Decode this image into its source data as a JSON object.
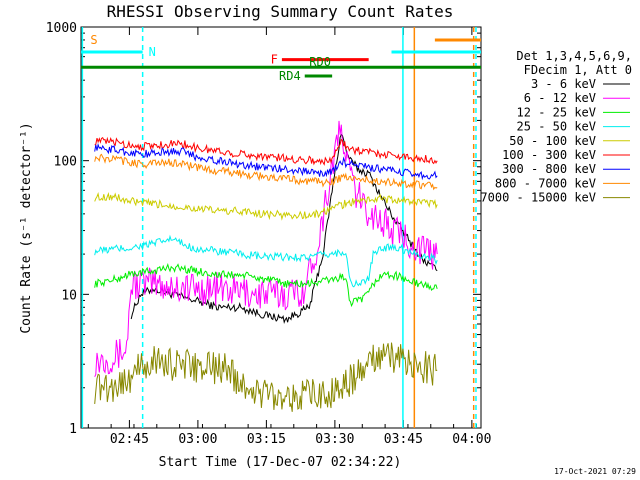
{
  "chart_data": {
    "type": "line",
    "title": "RHESSI Observing Summary Count Rates",
    "xlabel": "Start Time (17-Dec-07 02:34:22)",
    "ylabel": "Count Rate (s⁻¹ detector⁻¹)",
    "footer": "17-Oct-2021 07:29",
    "yscale": "log",
    "ylim": [
      1,
      1000
    ],
    "xlim_minutes": [
      0,
      87.6
    ],
    "x_unit": "minutes after 02:34:22",
    "y_tick_labels": [
      "1",
      "10",
      "100",
      "1000"
    ],
    "x_ticks": [
      {
        "label": "02:45",
        "t": 10.6
      },
      {
        "label": "03:00",
        "t": 25.6
      },
      {
        "label": "03:15",
        "t": 40.6
      },
      {
        "label": "03:30",
        "t": 55.6
      },
      {
        "label": "03:45",
        "t": 70.6
      },
      {
        "label": "04:00",
        "t": 85.6
      }
    ],
    "legend_header": [
      "Det 1,3,4,5,6,9,",
      "FDecim 1, Att 0"
    ],
    "series": [
      {
        "name": "3 - 6 keV",
        "color": "#000000",
        "points": [
          [
            11,
            7
          ],
          [
            13,
            10
          ],
          [
            16,
            11
          ],
          [
            20,
            10
          ],
          [
            25,
            9
          ],
          [
            30,
            8
          ],
          [
            35,
            8
          ],
          [
            40,
            7
          ],
          [
            45,
            6.5
          ],
          [
            50,
            8
          ],
          [
            53,
            20
          ],
          [
            55,
            60
          ],
          [
            57,
            165
          ],
          [
            58,
            120
          ],
          [
            59,
            100
          ],
          [
            61,
            85
          ],
          [
            63,
            80
          ],
          [
            65,
            60
          ],
          [
            67,
            45
          ],
          [
            69,
            35
          ],
          [
            71,
            28
          ],
          [
            73,
            22
          ],
          [
            75,
            18
          ],
          [
            77,
            16
          ],
          [
            78,
            15
          ]
        ]
      },
      {
        "name": "6 - 12 keV",
        "color": "#ff00ff",
        "points": [
          [
            3,
            3.2
          ],
          [
            8,
            3.5
          ],
          [
            10,
            4
          ],
          [
            11,
            12
          ],
          [
            16,
            12
          ],
          [
            20,
            11.5
          ],
          [
            25,
            11
          ],
          [
            30,
            11
          ],
          [
            35,
            10.5
          ],
          [
            40,
            10
          ],
          [
            45,
            10
          ],
          [
            49,
            11
          ],
          [
            52,
            25
          ],
          [
            54,
            60
          ],
          [
            56,
            140
          ],
          [
            57,
            160
          ],
          [
            58,
            110
          ],
          [
            60,
            60
          ],
          [
            62,
            45
          ],
          [
            64,
            40
          ],
          [
            66,
            35
          ],
          [
            68,
            30
          ],
          [
            70,
            28
          ],
          [
            72,
            25
          ],
          [
            74,
            22
          ],
          [
            76,
            20
          ],
          [
            78,
            20
          ]
        ]
      },
      {
        "name": "12 - 25 keV",
        "color": "#00ee00",
        "points": [
          [
            3,
            12
          ],
          [
            8,
            13
          ],
          [
            10,
            14
          ],
          [
            16,
            15
          ],
          [
            20,
            16
          ],
          [
            25,
            15
          ],
          [
            30,
            14
          ],
          [
            35,
            14
          ],
          [
            40,
            13
          ],
          [
            45,
            12
          ],
          [
            50,
            12
          ],
          [
            55,
            13
          ],
          [
            58,
            13.5
          ],
          [
            59,
            8.5
          ],
          [
            61,
            9
          ],
          [
            63,
            10
          ],
          [
            64,
            12
          ],
          [
            66,
            14
          ],
          [
            68,
            14
          ],
          [
            70,
            13.5
          ],
          [
            72,
            12.5
          ],
          [
            74,
            12
          ],
          [
            76,
            11.5
          ],
          [
            78,
            11
          ]
        ]
      },
      {
        "name": "25 - 50 keV",
        "color": "#00eeee",
        "points": [
          [
            3,
            21
          ],
          [
            8,
            22
          ],
          [
            10,
            22
          ],
          [
            16,
            24
          ],
          [
            20,
            26
          ],
          [
            22,
            24
          ],
          [
            25,
            22
          ],
          [
            30,
            21
          ],
          [
            35,
            20
          ],
          [
            40,
            19
          ],
          [
            45,
            19
          ],
          [
            50,
            19
          ],
          [
            55,
            20
          ],
          [
            58,
            21
          ],
          [
            59,
            12
          ],
          [
            61,
            12
          ],
          [
            63,
            13
          ],
          [
            64,
            20
          ],
          [
            66,
            22
          ],
          [
            68,
            23
          ],
          [
            70,
            22
          ],
          [
            72,
            21
          ],
          [
            74,
            20
          ],
          [
            76,
            19
          ],
          [
            78,
            18
          ]
        ]
      },
      {
        "name": "50 - 100 keV",
        "color": "#cccc00",
        "points": [
          [
            3,
            53
          ],
          [
            6,
            54
          ],
          [
            8,
            53
          ],
          [
            10,
            50
          ],
          [
            14,
            48
          ],
          [
            20,
            46
          ],
          [
            25,
            44
          ],
          [
            30,
            42
          ],
          [
            35,
            42
          ],
          [
            40,
            40
          ],
          [
            45,
            39
          ],
          [
            50,
            39
          ],
          [
            52,
            40
          ],
          [
            55,
            44
          ],
          [
            58,
            48
          ],
          [
            61,
            50
          ],
          [
            64,
            52
          ],
          [
            66,
            52
          ],
          [
            68,
            51
          ],
          [
            70,
            50
          ],
          [
            72,
            50
          ],
          [
            74,
            49
          ],
          [
            76,
            48
          ],
          [
            78,
            47
          ]
        ]
      },
      {
        "name": "100 - 300 keV",
        "color": "#ff0000",
        "points": [
          [
            3,
            140
          ],
          [
            8,
            138
          ],
          [
            10,
            132
          ],
          [
            14,
            128
          ],
          [
            18,
            132
          ],
          [
            22,
            135
          ],
          [
            25,
            125
          ],
          [
            30,
            118
          ],
          [
            35,
            112
          ],
          [
            40,
            108
          ],
          [
            45,
            104
          ],
          [
            50,
            101
          ],
          [
            53,
            99
          ],
          [
            55,
            100
          ],
          [
            57,
            145
          ],
          [
            58,
            130
          ],
          [
            60,
            120
          ],
          [
            62,
            118
          ],
          [
            64,
            115
          ],
          [
            66,
            112
          ],
          [
            68,
            110
          ],
          [
            70,
            108
          ],
          [
            72,
            106
          ],
          [
            74,
            105
          ],
          [
            76,
            103
          ],
          [
            78,
            100
          ]
        ]
      },
      {
        "name": "300 - 800 keV",
        "color": "#0000ff",
        "points": [
          [
            3,
            125
          ],
          [
            8,
            120
          ],
          [
            10,
            116
          ],
          [
            14,
            112
          ],
          [
            18,
            116
          ],
          [
            22,
            118
          ],
          [
            25,
            108
          ],
          [
            30,
            100
          ],
          [
            35,
            94
          ],
          [
            40,
            89
          ],
          [
            45,
            86
          ],
          [
            50,
            83
          ],
          [
            53,
            80
          ],
          [
            55,
            82
          ],
          [
            57,
            100
          ],
          [
            58,
            96
          ],
          [
            60,
            93
          ],
          [
            62,
            90
          ],
          [
            64,
            88
          ],
          [
            66,
            86
          ],
          [
            68,
            84
          ],
          [
            70,
            82
          ],
          [
            72,
            80
          ],
          [
            74,
            79
          ],
          [
            76,
            78
          ],
          [
            78,
            77
          ]
        ]
      },
      {
        "name": "800 - 7000 keV",
        "color": "#ff8800",
        "points": [
          [
            3,
            105
          ],
          [
            8,
            102
          ],
          [
            10,
            98
          ],
          [
            14,
            94
          ],
          [
            18,
            97
          ],
          [
            22,
            96
          ],
          [
            25,
            89
          ],
          [
            30,
            84
          ],
          [
            35,
            80
          ],
          [
            40,
            76
          ],
          [
            45,
            73
          ],
          [
            50,
            70
          ],
          [
            53,
            69
          ],
          [
            55,
            70
          ],
          [
            57,
            75
          ],
          [
            58,
            74
          ],
          [
            60,
            73
          ],
          [
            62,
            72
          ],
          [
            64,
            71
          ],
          [
            66,
            70
          ],
          [
            68,
            69
          ],
          [
            70,
            68
          ],
          [
            72,
            67
          ],
          [
            74,
            66
          ],
          [
            76,
            65
          ],
          [
            78,
            63
          ]
        ]
      },
      {
        "name": "7000 - 15000 keV",
        "color": "#888800",
        "points": [
          [
            3,
            2
          ],
          [
            8,
            2.1
          ],
          [
            10,
            2.3
          ],
          [
            13,
            2.8
          ],
          [
            16,
            3.2
          ],
          [
            20,
            3
          ],
          [
            24,
            2.9
          ],
          [
            28,
            2.8
          ],
          [
            32,
            2.8
          ],
          [
            36,
            2
          ],
          [
            40,
            1.8
          ],
          [
            44,
            1.8
          ],
          [
            48,
            1.7
          ],
          [
            52,
            1.8
          ],
          [
            56,
            1.9
          ],
          [
            60,
            2.4
          ],
          [
            64,
            3.2
          ],
          [
            66,
            3.3
          ],
          [
            68,
            3.4
          ],
          [
            70,
            3.3
          ],
          [
            72,
            3
          ],
          [
            74,
            2.9
          ],
          [
            76,
            2.8
          ],
          [
            78,
            2.7
          ]
        ]
      }
    ],
    "annotations": [
      {
        "label": "S",
        "color": "#ff8800",
        "type": "hbar_label",
        "y": 800,
        "t_start": 0.3,
        "t_end": 0.3
      },
      {
        "label": "N",
        "color": "#00ffff",
        "type": "hbar",
        "y": 650,
        "t_start": 0,
        "t_end": 13.5
      },
      {
        "label": "",
        "color": "#00ffff",
        "type": "hbar",
        "y": 650,
        "t_start": 68,
        "t_end": 87.6
      },
      {
        "label": "F",
        "color": "#ff0000",
        "type": "hbar",
        "y": 570,
        "t_start": 44,
        "t_end": 63
      },
      {
        "label": "RD0",
        "color": "#008800",
        "type": "text",
        "y": 510,
        "t_start": 50,
        "t_end": 50
      },
      {
        "label": "",
        "color": "#008800",
        "type": "hbar",
        "y": 500,
        "t_start": 0,
        "t_end": 87.6
      },
      {
        "label": "RD4",
        "color": "#008800",
        "type": "hbar",
        "y": 430,
        "t_start": 49,
        "t_end": 55
      },
      {
        "label": "",
        "color": "#ff8800",
        "type": "hbar",
        "y": 800,
        "t_start": 77.5,
        "t_end": 87.6
      }
    ],
    "vlines": [
      {
        "t": 0.3,
        "color": "#00ffff",
        "dashed": false
      },
      {
        "t": 13.5,
        "color": "#00ffff",
        "dashed": true
      },
      {
        "t": 70.5,
        "color": "#00ffff",
        "dashed": false
      },
      {
        "t": 73,
        "color": "#ff8800",
        "dashed": false
      },
      {
        "t": 86,
        "color": "#ff8800",
        "dashed": true
      },
      {
        "t": 86.5,
        "color": "#00ffff",
        "dashed": true
      }
    ]
  }
}
